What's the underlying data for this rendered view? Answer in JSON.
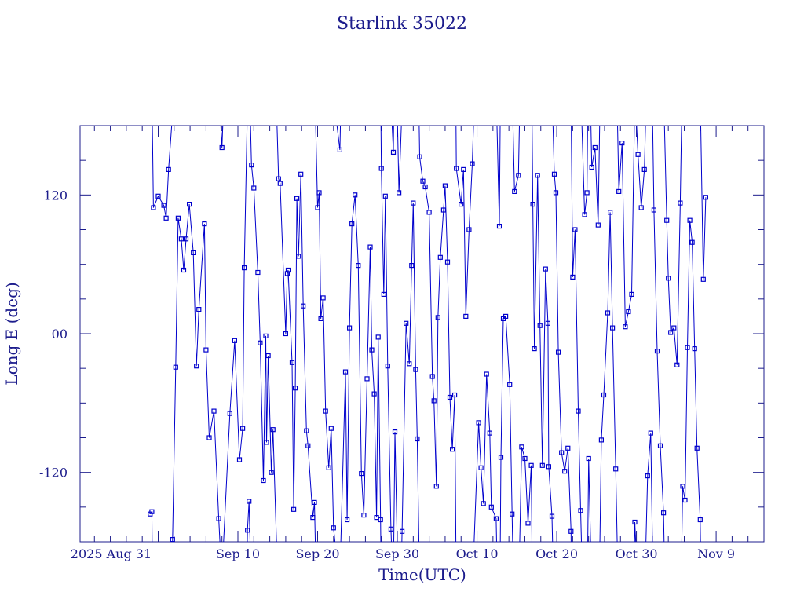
{
  "chart_data": {
    "type": "scatter",
    "title": "Starlink 35022",
    "xlabel": "Time(UTC)",
    "ylabel": "Long E (deg)",
    "x_ticks": [
      {
        "label": "2025 Aug 31",
        "days_from_aug31": 0
      },
      {
        "label": "Sep 10",
        "days_from_aug31": 10
      },
      {
        "label": "Sep 20",
        "days_from_aug31": 20
      },
      {
        "label": "Sep 30",
        "days_from_aug31": 30
      },
      {
        "label": "Oct 10",
        "days_from_aug31": 40
      },
      {
        "label": "Oct 20",
        "days_from_aug31": 50
      },
      {
        "label": "Oct 30",
        "days_from_aug31": 60
      },
      {
        "label": "Nov  9",
        "days_from_aug31": 70
      }
    ],
    "y_ticks": [
      "-120",
      "00",
      "120"
    ],
    "xlim_days_from_aug31": [
      -9.8,
      76
    ],
    "ylim": [
      -180,
      180
    ],
    "grid": false,
    "series": [
      {
        "name": "",
        "color": "#0000cc",
        "points": [
          [
            -1.0,
            -156
          ],
          [
            -0.8,
            -154
          ],
          [
            -0.6,
            109
          ],
          [
            0.0,
            119
          ],
          [
            0.7,
            111
          ],
          [
            1.0,
            100
          ],
          [
            1.3,
            142
          ],
          [
            1.8,
            -178
          ],
          [
            2.2,
            -29
          ],
          [
            2.5,
            100
          ],
          [
            2.9,
            82
          ],
          [
            3.2,
            55
          ],
          [
            3.5,
            82
          ],
          [
            3.9,
            112
          ],
          [
            4.4,
            70
          ],
          [
            4.8,
            -28
          ],
          [
            5.1,
            21
          ],
          [
            5.8,
            95
          ],
          [
            6.0,
            -14
          ],
          [
            6.4,
            -90
          ],
          [
            7.0,
            -67
          ],
          [
            7.6,
            -160
          ],
          [
            8.0,
            161
          ],
          [
            9.0,
            -69
          ],
          [
            9.6,
            -6
          ],
          [
            10.2,
            -109
          ],
          [
            10.6,
            -82
          ],
          [
            10.8,
            57
          ],
          [
            11.2,
            -170
          ],
          [
            11.4,
            -145
          ],
          [
            11.7,
            146
          ],
          [
            12.0,
            126
          ],
          [
            12.5,
            53
          ],
          [
            12.8,
            -8
          ],
          [
            13.2,
            -127
          ],
          [
            13.5,
            -2
          ],
          [
            13.6,
            -94
          ],
          [
            13.8,
            -19
          ],
          [
            14.2,
            -120
          ],
          [
            14.4,
            -83
          ],
          [
            15.1,
            134
          ],
          [
            15.3,
            130
          ],
          [
            16.0,
            0
          ],
          [
            16.2,
            52
          ],
          [
            16.3,
            55
          ],
          [
            16.8,
            -25
          ],
          [
            17.0,
            -152
          ],
          [
            17.2,
            -47
          ],
          [
            17.4,
            117
          ],
          [
            17.6,
            67
          ],
          [
            17.9,
            138
          ],
          [
            18.2,
            24
          ],
          [
            18.6,
            -84
          ],
          [
            18.8,
            -97
          ],
          [
            19.4,
            -159
          ],
          [
            19.6,
            -146
          ],
          [
            20.0,
            109
          ],
          [
            20.2,
            122
          ],
          [
            20.4,
            13
          ],
          [
            20.7,
            31
          ],
          [
            21.0,
            -67
          ],
          [
            21.4,
            -116
          ],
          [
            21.7,
            -82
          ],
          [
            22.0,
            -168
          ],
          [
            22.8,
            159
          ],
          [
            23.5,
            -33
          ],
          [
            23.7,
            -161
          ],
          [
            24.0,
            5
          ],
          [
            24.3,
            95
          ],
          [
            24.7,
            120
          ],
          [
            25.1,
            59
          ],
          [
            25.5,
            -121
          ],
          [
            25.8,
            -157
          ],
          [
            26.2,
            -39
          ],
          [
            26.6,
            75
          ],
          [
            26.8,
            -14
          ],
          [
            27.1,
            -52
          ],
          [
            27.4,
            -159
          ],
          [
            27.6,
            -3
          ],
          [
            27.9,
            -161
          ],
          [
            28.0,
            143
          ],
          [
            28.3,
            34
          ],
          [
            28.5,
            119
          ],
          [
            28.8,
            -28
          ],
          [
            29.2,
            -169
          ],
          [
            29.5,
            157
          ],
          [
            29.7,
            -85
          ],
          [
            30.2,
            122
          ],
          [
            30.6,
            -171
          ],
          [
            31.1,
            9
          ],
          [
            31.5,
            -26
          ],
          [
            31.8,
            59
          ],
          [
            32.0,
            113
          ],
          [
            32.3,
            -31
          ],
          [
            32.5,
            -91
          ],
          [
            32.8,
            153
          ],
          [
            33.2,
            132
          ],
          [
            33.5,
            127
          ],
          [
            34.0,
            105
          ],
          [
            34.4,
            -37
          ],
          [
            34.6,
            -58
          ],
          [
            34.9,
            -132
          ],
          [
            35.1,
            14
          ],
          [
            35.4,
            66
          ],
          [
            35.8,
            107
          ],
          [
            36.0,
            128
          ],
          [
            36.3,
            62
          ],
          [
            36.6,
            -55
          ],
          [
            36.9,
            -100
          ],
          [
            37.2,
            -53
          ],
          [
            37.4,
            143
          ],
          [
            38.0,
            112
          ],
          [
            38.3,
            142
          ],
          [
            38.6,
            15
          ],
          [
            39.0,
            90
          ],
          [
            39.4,
            147
          ],
          [
            40.2,
            -77
          ],
          [
            40.5,
            -116
          ],
          [
            40.8,
            -147
          ],
          [
            41.2,
            -35
          ],
          [
            41.6,
            -86
          ],
          [
            41.8,
            -150
          ],
          [
            42.4,
            -160
          ],
          [
            42.8,
            93
          ],
          [
            43.0,
            -107
          ],
          [
            43.3,
            13
          ],
          [
            43.6,
            15
          ],
          [
            44.1,
            -44
          ],
          [
            44.4,
            -156
          ],
          [
            44.7,
            123
          ],
          [
            45.2,
            137
          ],
          [
            45.6,
            -98
          ],
          [
            46.0,
            -108
          ],
          [
            46.4,
            -164
          ],
          [
            46.8,
            -114
          ],
          [
            47.0,
            112
          ],
          [
            47.2,
            -13
          ],
          [
            47.6,
            137
          ],
          [
            47.9,
            7
          ],
          [
            48.2,
            -114
          ],
          [
            48.6,
            56
          ],
          [
            48.9,
            9
          ],
          [
            49.0,
            -115
          ],
          [
            49.4,
            -158
          ],
          [
            49.7,
            138
          ],
          [
            49.9,
            122
          ],
          [
            50.2,
            -16
          ],
          [
            50.6,
            -103
          ],
          [
            51.0,
            -119
          ],
          [
            51.4,
            -99
          ],
          [
            51.8,
            -171
          ],
          [
            52.0,
            49
          ],
          [
            52.3,
            90
          ],
          [
            52.7,
            -67
          ],
          [
            53.0,
            -153
          ],
          [
            53.5,
            103
          ],
          [
            53.8,
            122
          ],
          [
            54.0,
            -108
          ],
          [
            54.4,
            144
          ],
          [
            54.8,
            161
          ],
          [
            55.2,
            94
          ],
          [
            55.6,
            -92
          ],
          [
            55.9,
            -53
          ],
          [
            56.4,
            18
          ],
          [
            56.7,
            105
          ],
          [
            57.0,
            5
          ],
          [
            57.4,
            -117
          ],
          [
            57.8,
            123
          ],
          [
            58.2,
            165
          ],
          [
            58.6,
            6
          ],
          [
            59.0,
            19
          ],
          [
            59.4,
            34
          ],
          [
            59.8,
            -163
          ],
          [
            60.2,
            155
          ],
          [
            60.6,
            109
          ],
          [
            61.0,
            142
          ],
          [
            61.4,
            -123
          ],
          [
            61.8,
            -86
          ],
          [
            62.2,
            107
          ],
          [
            62.6,
            -15
          ],
          [
            63.0,
            -97
          ],
          [
            63.4,
            -155
          ],
          [
            63.8,
            98
          ],
          [
            64.0,
            48
          ],
          [
            64.3,
            1
          ],
          [
            64.7,
            5
          ],
          [
            65.1,
            -27
          ],
          [
            65.5,
            113
          ],
          [
            65.8,
            -132
          ],
          [
            66.1,
            -144
          ],
          [
            66.4,
            -12
          ],
          [
            66.7,
            98
          ],
          [
            67.0,
            79
          ],
          [
            67.3,
            -13
          ],
          [
            67.6,
            -99
          ],
          [
            68.0,
            -161
          ],
          [
            68.4,
            47
          ],
          [
            68.7,
            118
          ]
        ]
      }
    ]
  }
}
